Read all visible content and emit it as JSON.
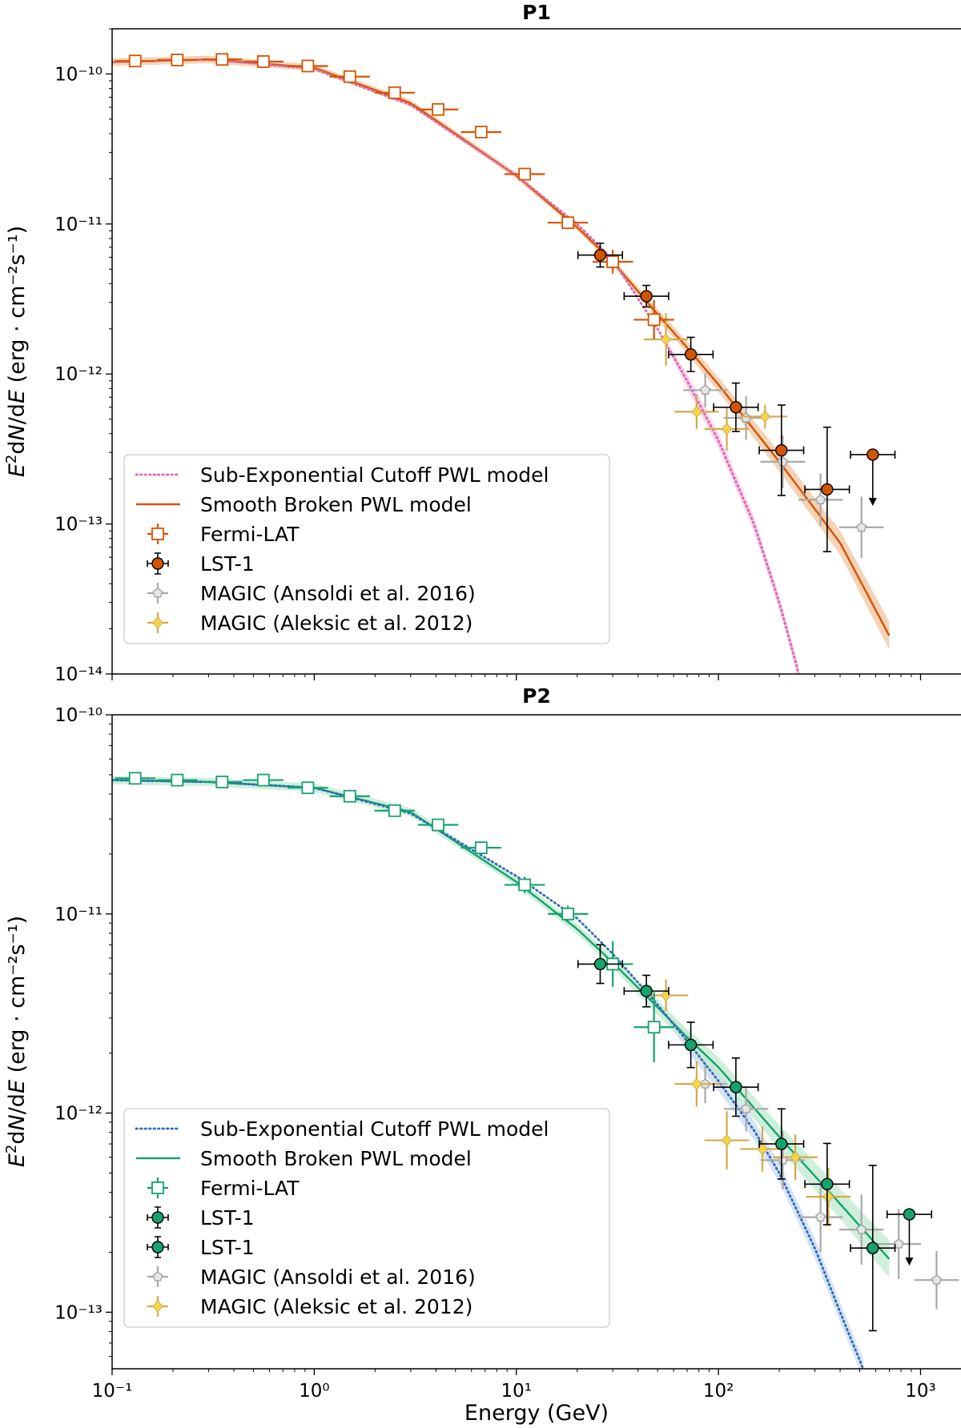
{
  "figure": {
    "xlabel": "Energy (GeV)",
    "ylabel_unit": "(erg · cm⁻²s⁻¹)",
    "xrange": [
      0.1,
      1600
    ]
  },
  "colors": {
    "p1": "#d45500",
    "p1_band": "#f2c49e",
    "p1_cut": "#d966b3",
    "p1_cut_band": "#f4c6e4",
    "p2": "#16a26d",
    "p2_band": "#bfe9cf",
    "p2_cut": "#2b6cb8",
    "p2_cut_band": "#c9d9f2",
    "ansoldi": "#9e9e9e",
    "aleksic": "#d4a94c",
    "aleksic_fill": "#f5d547",
    "lst_err": "#000000"
  },
  "chart_data": [
    {
      "type": "scatter",
      "panel": "P1",
      "title": "P1",
      "xlabel": "",
      "ylabel": "E²dN/dE (erg · cm⁻²s⁻¹)",
      "xscale": "log",
      "yscale": "log",
      "xlim": [
        0.1,
        1600
      ],
      "ylim": [
        1e-14,
        2e-10
      ],
      "yticks": [
        "10⁻¹⁴",
        "10⁻¹³",
        "10⁻¹²",
        "10⁻¹¹",
        "10⁻¹⁰"
      ],
      "xticks": [],
      "legend_position": "lower-left",
      "legend": [
        "Sub-Exponential Cutoff PWL model",
        "Smooth Broken PWL model",
        "Fermi-LAT",
        "LST-1",
        "MAGIC (Ansoldi et al. 2016)",
        "MAGIC (Aleksic et al. 2012)"
      ],
      "series": [
        {
          "name": "Sub-Exponential Cutoff PWL model",
          "style": "dotted",
          "x": [
            0.1,
            0.3,
            1,
            3,
            10,
            20,
            30,
            50,
            70,
            100,
            150,
            200,
            250
          ],
          "y": [
            1.2e-10,
            1.25e-10,
            1.08e-10,
            6.2e-11,
            2.1e-11,
            1e-11,
            5.8e-12,
            2e-12,
            9e-13,
            3.6e-13,
            1e-13,
            3e-14,
            1e-14
          ]
        },
        {
          "name": "Smooth Broken PWL model",
          "style": "solid",
          "x": [
            0.1,
            0.3,
            1,
            3,
            10,
            20,
            30,
            50,
            70,
            100,
            200,
            400,
            700
          ],
          "y": [
            1.2e-10,
            1.25e-10,
            1.1e-10,
            6.4e-11,
            2.1e-11,
            9.5e-12,
            5.6e-12,
            2.5e-12,
            1.5e-12,
            8.5e-13,
            2.6e-13,
            7.5e-14,
            1.8e-14
          ],
          "band": [
            0.06,
            0.06,
            0.05,
            0.05,
            0.05,
            0.05,
            0.06,
            0.08,
            0.1,
            0.12,
            0.16,
            0.2,
            0.24
          ]
        },
        {
          "name": "Fermi-LAT",
          "marker": "open-square",
          "x": [
            0.13,
            0.21,
            0.35,
            0.56,
            0.93,
            1.5,
            2.5,
            4.1,
            6.7,
            11,
            18,
            30,
            48
          ],
          "y": [
            1.22e-10,
            1.24e-10,
            1.25e-10,
            1.21e-10,
            1.13e-10,
            9.6e-11,
            7.5e-11,
            5.8e-11,
            4.1e-11,
            2.15e-11,
            1.02e-11,
            5.6e-12,
            2.3e-12
          ],
          "yerr_factor": [
            1.03,
            1.03,
            1.03,
            1.03,
            1.03,
            1.04,
            1.04,
            1.05,
            1.06,
            1.08,
            1.1,
            1.2,
            1.35
          ]
        },
        {
          "name": "LST-1",
          "marker": "filled-circle",
          "x": [
            26,
            44,
            73,
            122,
            205,
            345,
            580
          ],
          "y": [
            6.2e-12,
            3.3e-12,
            1.35e-12,
            6e-13,
            3.1e-13,
            1.7e-13,
            2.9e-13
          ],
          "yerr_factor": [
            1.2,
            1.18,
            1.3,
            1.45,
            2.0,
            2.6,
            1.0
          ],
          "upper_limit": [
            false,
            false,
            false,
            false,
            false,
            false,
            true
          ]
        },
        {
          "name": "MAGIC (Ansoldi et al. 2016)",
          "marker": "grey-pentagon",
          "x": [
            86,
            137,
            208,
            320,
            510
          ],
          "y": [
            7.8e-13,
            5.1e-13,
            2.6e-13,
            1.45e-13,
            9.5e-14
          ],
          "yerr_factor": [
            1.3,
            1.4,
            1.5,
            1.5,
            1.6
          ]
        },
        {
          "name": "MAGIC (Aleksic et al. 2012)",
          "marker": "yellow-diamond",
          "x": [
            55,
            78,
            110,
            170
          ],
          "y": [
            1.7e-12,
            5.6e-13,
            4.3e-13,
            5.2e-13
          ],
          "yerr_factor": [
            1.5,
            1.3,
            1.4,
            1.2
          ]
        }
      ]
    },
    {
      "type": "scatter",
      "panel": "P2",
      "title": "P2",
      "xlabel": "Energy (GeV)",
      "ylabel": "E²dN/dE (erg · cm⁻²s⁻¹)",
      "xscale": "log",
      "yscale": "log",
      "xlim": [
        0.1,
        1600
      ],
      "ylim": [
        5.2e-14,
        1e-10
      ],
      "yticks": [
        "10⁻¹³",
        "10⁻¹²",
        "10⁻¹¹",
        "10⁻¹⁰"
      ],
      "xticks": [
        "10⁻¹",
        "10⁰",
        "10¹",
        "10²",
        "10³"
      ],
      "legend_position": "lower-left",
      "legend": [
        "Sub-Exponential Cutoff PWL model",
        "Smooth Broken PWL model",
        "Fermi-LAT",
        "LST-1",
        "LST-1",
        "MAGIC (Ansoldi et al. 2016)",
        "MAGIC (Aleksic et al. 2012)"
      ],
      "series": [
        {
          "name": "Sub-Exponential Cutoff PWL model",
          "style": "dotted",
          "x": [
            0.1,
            0.3,
            1,
            3,
            10,
            20,
            30,
            50,
            70,
            100,
            150,
            200,
            300,
            400,
            520
          ],
          "y": [
            4.7e-11,
            4.6e-11,
            4.3e-11,
            3.2e-11,
            1.55e-11,
            9.5e-12,
            6.3e-12,
            3.5e-12,
            2.3e-12,
            1.45e-12,
            8.2e-13,
            5e-13,
            2.1e-13,
            1e-13,
            5.2e-14
          ]
        },
        {
          "name": "Smooth Broken PWL model",
          "style": "solid",
          "x": [
            0.1,
            0.3,
            1,
            3,
            10,
            20,
            30,
            50,
            70,
            100,
            200,
            400,
            700
          ],
          "y": [
            4.7e-11,
            4.6e-11,
            4.3e-11,
            3.25e-11,
            1.45e-11,
            8.4e-12,
            5.7e-12,
            3.4e-12,
            2.4e-12,
            1.7e-12,
            7.6e-13,
            3.5e-13,
            1.85e-13
          ],
          "band": [
            0.05,
            0.05,
            0.05,
            0.05,
            0.05,
            0.06,
            0.07,
            0.09,
            0.1,
            0.12,
            0.15,
            0.19,
            0.24
          ]
        },
        {
          "name": "Fermi-LAT",
          "marker": "open-square",
          "x": [
            0.13,
            0.21,
            0.35,
            0.56,
            0.93,
            1.5,
            2.5,
            4.1,
            6.7,
            11,
            18,
            30,
            48
          ],
          "y": [
            4.8e-11,
            4.7e-11,
            4.6e-11,
            4.7e-11,
            4.3e-11,
            3.9e-11,
            3.3e-11,
            2.8e-11,
            2.15e-11,
            1.4e-11,
            1e-11,
            5.6e-12,
            2.7e-12
          ],
          "yerr_factor": [
            1.03,
            1.03,
            1.03,
            1.03,
            1.03,
            1.04,
            1.05,
            1.05,
            1.06,
            1.1,
            1.1,
            1.3,
            1.5
          ]
        },
        {
          "name": "LST-1",
          "marker": "filled-circle",
          "x": [
            26,
            44,
            73,
            122,
            205,
            345,
            580,
            880
          ],
          "y": [
            5.6e-12,
            4.1e-12,
            2.2e-12,
            1.35e-12,
            7e-13,
            4.4e-13,
            2.1e-13,
            3.1e-13
          ],
          "yerr_factor": [
            1.25,
            1.2,
            1.3,
            1.4,
            1.5,
            1.6,
            2.6,
            1.0
          ],
          "upper_limit": [
            false,
            false,
            false,
            false,
            false,
            false,
            false,
            true
          ]
        },
        {
          "name": "MAGIC (Ansoldi et al. 2016)",
          "marker": "grey-pentagon",
          "x": [
            86,
            137,
            208,
            320,
            510,
            780,
            1200
          ],
          "y": [
            1.4e-12,
            1.05e-12,
            5.8e-13,
            3e-13,
            2.6e-13,
            2.2e-13,
            1.45e-13
          ],
          "yerr_factor": [
            1.25,
            1.3,
            1.4,
            1.5,
            1.5,
            1.5,
            1.4
          ]
        },
        {
          "name": "MAGIC (Aleksic et al. 2012)",
          "marker": "yellow-diamond",
          "x": [
            55,
            78,
            110,
            165,
            240,
            350
          ],
          "y": [
            3.9e-12,
            1.4e-12,
            7.3e-13,
            6.6e-13,
            6e-13,
            3.8e-13
          ],
          "yerr_factor": [
            1.2,
            1.3,
            1.4,
            1.3,
            1.3,
            1.4
          ]
        }
      ]
    }
  ]
}
